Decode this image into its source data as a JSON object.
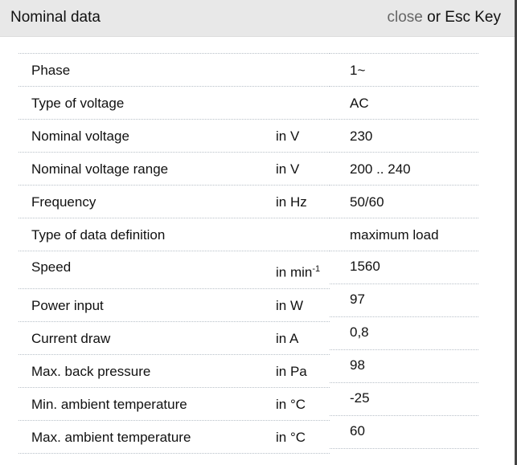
{
  "header": {
    "title": "Nominal data",
    "close_label": "close",
    "close_suffix": " or Esc Key"
  },
  "rows": [
    {
      "label": "Phase",
      "unit": "",
      "value": "1~"
    },
    {
      "label": "Type of voltage",
      "unit": "",
      "value": "AC"
    },
    {
      "label": "Nominal voltage",
      "unit": "in V",
      "value": "230"
    },
    {
      "label": "Nominal voltage range",
      "unit": "in V",
      "value": "200 .. 240"
    },
    {
      "label": "Frequency",
      "unit": "in Hz",
      "value": "50/60"
    },
    {
      "label": "Type of data definition",
      "unit": "",
      "value": "maximum load"
    },
    {
      "label": "Speed",
      "unit": "in min",
      "unit_sup": "-1",
      "value": "1560"
    },
    {
      "label": "Power input",
      "unit": "in W",
      "value": "97"
    },
    {
      "label": "Current draw",
      "unit": "in A",
      "value": "0,8"
    },
    {
      "label": "Max. back pressure",
      "unit": "in Pa",
      "value": "98"
    },
    {
      "label": "Min. ambient temperature",
      "unit": "in °C",
      "value": "-25"
    },
    {
      "label": "Max. ambient temperature",
      "unit": "in °C",
      "value": "60"
    }
  ]
}
